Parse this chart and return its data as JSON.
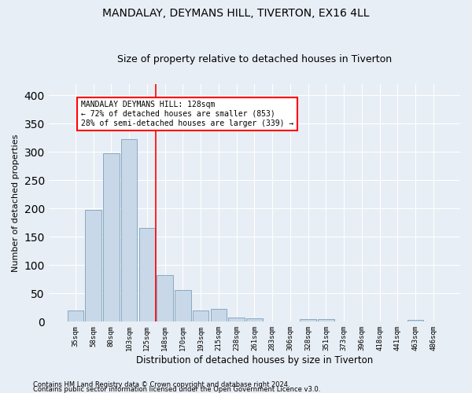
{
  "title": "MANDALAY, DEYMANS HILL, TIVERTON, EX16 4LL",
  "subtitle": "Size of property relative to detached houses in Tiverton",
  "xlabel": "Distribution of detached houses by size in Tiverton",
  "ylabel": "Number of detached properties",
  "footnote1": "Contains HM Land Registry data © Crown copyright and database right 2024.",
  "footnote2": "Contains public sector information licensed under the Open Government Licence v3.0.",
  "categories": [
    "35sqm",
    "58sqm",
    "80sqm",
    "103sqm",
    "125sqm",
    "148sqm",
    "170sqm",
    "193sqm",
    "215sqm",
    "238sqm",
    "261sqm",
    "283sqm",
    "306sqm",
    "328sqm",
    "351sqm",
    "373sqm",
    "396sqm",
    "418sqm",
    "441sqm",
    "463sqm",
    "486sqm"
  ],
  "values": [
    20,
    197,
    298,
    322,
    165,
    82,
    56,
    20,
    22,
    7,
    6,
    0,
    0,
    5,
    5,
    0,
    0,
    0,
    0,
    3,
    0
  ],
  "bar_color": "#c8d8e8",
  "bar_edge_color": "#7aa0bb",
  "vline_x": 4.5,
  "vline_color": "red",
  "annotation_text": "MANDALAY DEYMANS HILL: 128sqm\n← 72% of detached houses are smaller (853)\n28% of semi-detached houses are larger (339) →",
  "annotation_box_color": "white",
  "annotation_box_edge_color": "red",
  "ylim": [
    0,
    420
  ],
  "yticks": [
    0,
    50,
    100,
    150,
    200,
    250,
    300,
    350,
    400
  ],
  "background_color": "#e8eef5",
  "plot_bg_color": "#e8eef5",
  "grid_color": "white",
  "title_fontsize": 10,
  "subtitle_fontsize": 9,
  "xlabel_fontsize": 8.5,
  "ylabel_fontsize": 8
}
